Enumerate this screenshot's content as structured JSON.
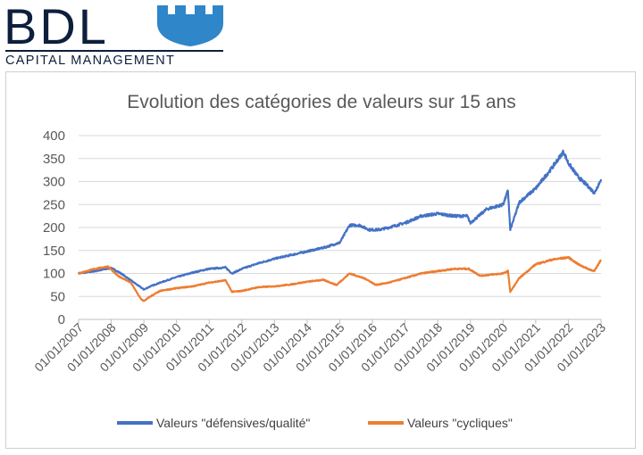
{
  "logo": {
    "letters": "BDL",
    "subtitle": "CAPITAL MANAGEMENT"
  },
  "colors": {
    "defensive": "#4472c4",
    "cyclical": "#ed7d31",
    "grid": "#d9d9d9",
    "brand": "#0d1f3c",
    "logo_blue": "#2f86c8"
  },
  "chart_data": {
    "type": "line",
    "title": "Evolution des catégories de valeurs sur 15 ans",
    "xlabel": "",
    "ylabel": "",
    "ylim": [
      0,
      400
    ],
    "yticks": [
      0,
      50,
      100,
      150,
      200,
      250,
      300,
      350,
      400
    ],
    "xticks": [
      "01/01/2007",
      "01/01/2008",
      "01/01/2009",
      "01/01/2010",
      "01/01/2011",
      "01/01/2012",
      "01/01/2013",
      "01/01/2014",
      "01/01/2015",
      "01/01/2016",
      "01/01/2017",
      "01/01/2018",
      "01/01/2019",
      "01/01/2020",
      "01/01/2021",
      "01/01/2022",
      "01/01/2023"
    ],
    "legend_position": "bottom",
    "grid": true,
    "series": [
      {
        "name": "Valeurs \"défensives/qualité\"",
        "color": "#4472c4",
        "x": [
          2007.0,
          2007.5,
          2008.0,
          2008.3,
          2008.6,
          2008.9,
          2009.0,
          2009.2,
          2009.5,
          2010.0,
          2010.5,
          2011.0,
          2011.5,
          2011.7,
          2012.0,
          2012.5,
          2013.0,
          2013.5,
          2014.0,
          2014.5,
          2015.0,
          2015.3,
          2015.6,
          2015.9,
          2016.2,
          2016.5,
          2017.0,
          2017.5,
          2018.0,
          2018.5,
          2018.9,
          2019.0,
          2019.5,
          2020.0,
          2020.15,
          2020.22,
          2020.5,
          2021.0,
          2021.5,
          2021.85,
          2022.0,
          2022.3,
          2022.6,
          2022.8,
          2023.0
        ],
        "values": [
          100,
          105,
          112,
          100,
          85,
          70,
          65,
          72,
          80,
          92,
          102,
          110,
          113,
          100,
          110,
          122,
          132,
          140,
          148,
          156,
          167,
          205,
          205,
          195,
          195,
          200,
          210,
          225,
          230,
          225,
          225,
          210,
          240,
          250,
          280,
          195,
          255,
          285,
          330,
          365,
          340,
          310,
          290,
          275,
          305
        ]
      },
      {
        "name": "Valeurs \"cycliques\"",
        "color": "#ed7d31",
        "x": [
          2007.0,
          2007.5,
          2007.9,
          2008.2,
          2008.6,
          2008.9,
          2009.0,
          2009.2,
          2009.5,
          2010.0,
          2010.5,
          2011.0,
          2011.5,
          2011.7,
          2012.0,
          2012.5,
          2013.0,
          2013.5,
          2014.0,
          2014.5,
          2014.9,
          2015.3,
          2015.8,
          2016.1,
          2016.5,
          2017.0,
          2017.5,
          2018.0,
          2018.5,
          2018.95,
          2019.3,
          2020.0,
          2020.15,
          2020.22,
          2020.5,
          2021.0,
          2021.5,
          2022.0,
          2022.3,
          2022.6,
          2022.8,
          2023.0
        ],
        "values": [
          100,
          110,
          115,
          95,
          80,
          45,
          40,
          50,
          62,
          68,
          72,
          80,
          85,
          60,
          62,
          70,
          72,
          76,
          82,
          86,
          75,
          100,
          88,
          75,
          80,
          90,
          100,
          105,
          110,
          110,
          95,
          100,
          105,
          60,
          90,
          120,
          130,
          135,
          120,
          110,
          105,
          130
        ]
      }
    ]
  }
}
